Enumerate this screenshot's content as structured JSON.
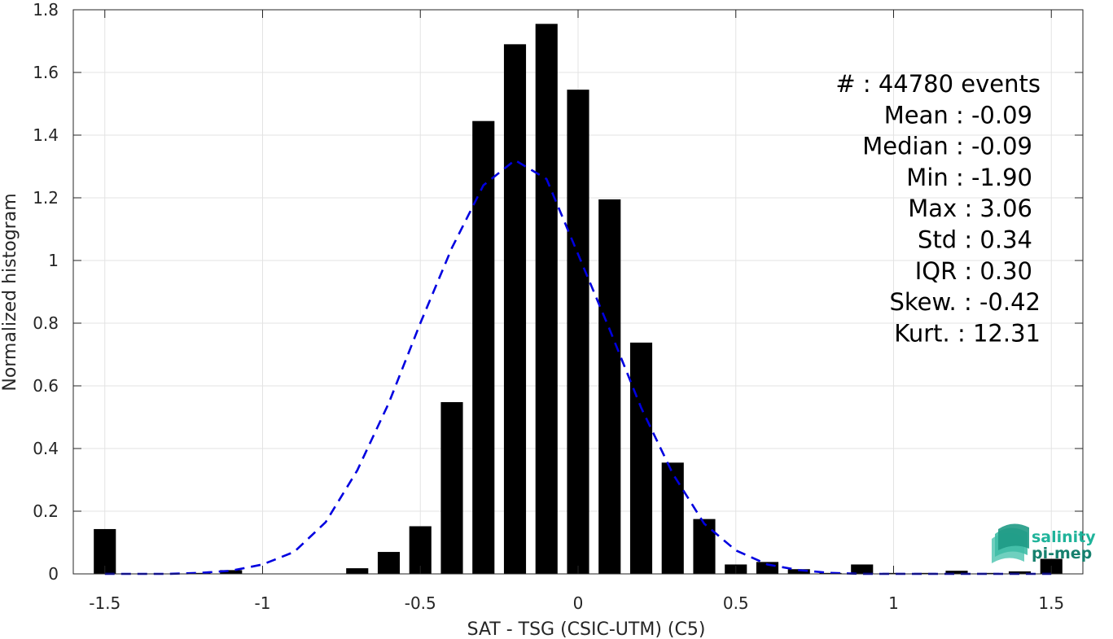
{
  "chart_data": {
    "type": "bar",
    "xlabel": "SAT - TSG (CSIC-UTM) (C5)",
    "ylabel": "Normalized histogram",
    "xlim": [
      -1.6,
      1.6
    ],
    "ylim": [
      0,
      1.8
    ],
    "grid": true,
    "xticks": [
      "-1.5",
      "-1",
      "-0.5",
      "0",
      "0.5",
      "1",
      "1.5"
    ],
    "xtick_values": [
      -1.5,
      -1,
      -0.5,
      0,
      0.5,
      1,
      1.5
    ],
    "yticks": [
      "0",
      "0.2",
      "0.4",
      "0.6",
      "0.8",
      "1",
      "1.2",
      "1.4",
      "1.6",
      "1.8"
    ],
    "ytick_values": [
      0,
      0.2,
      0.4,
      0.6,
      0.8,
      1.0,
      1.2,
      1.4,
      1.6,
      1.8
    ],
    "bar_color": "#000000",
    "bar_width": 0.07,
    "bins_x": [
      -1.5,
      -1.4,
      -1.3,
      -1.2,
      -1.1,
      -1.0,
      -0.9,
      -0.8,
      -0.7,
      -0.6,
      -0.5,
      -0.4,
      -0.3,
      -0.2,
      -0.1,
      0.0,
      0.1,
      0.2,
      0.3,
      0.4,
      0.5,
      0.6,
      0.7,
      0.8,
      0.9,
      1.0,
      1.1,
      1.2,
      1.3,
      1.4,
      1.5
    ],
    "values": [
      0.143,
      0.0,
      0.0,
      0.003,
      0.012,
      0.0,
      0.0,
      0.0,
      0.018,
      0.07,
      0.152,
      0.548,
      1.445,
      1.69,
      1.755,
      1.545,
      1.195,
      0.738,
      0.355,
      0.175,
      0.03,
      0.038,
      0.015,
      0.003,
      0.03,
      0.003,
      0.003,
      0.01,
      0.003,
      0.008,
      0.048
    ],
    "fit": {
      "name": "Gaussian fit",
      "color": "#0000e0",
      "style": "dashed",
      "x": [
        -1.5,
        -1.4,
        -1.3,
        -1.2,
        -1.1,
        -1.0,
        -0.9,
        -0.8,
        -0.7,
        -0.6,
        -0.5,
        -0.4,
        -0.3,
        -0.2,
        -0.1,
        0.0,
        0.1,
        0.2,
        0.3,
        0.4,
        0.5,
        0.6,
        0.7,
        0.8,
        0.9,
        1.0,
        1.1,
        1.2,
        1.3,
        1.4,
        1.5
      ],
      "y": [
        0.0,
        0.0,
        0.0,
        0.003,
        0.01,
        0.03,
        0.07,
        0.165,
        0.33,
        0.545,
        0.8,
        1.04,
        1.24,
        1.32,
        1.26,
        1.02,
        0.78,
        0.53,
        0.32,
        0.16,
        0.075,
        0.03,
        0.012,
        0.003,
        0.0,
        0.0,
        0.0,
        0.0,
        0.0,
        0.0,
        0.0
      ]
    },
    "annotation_lines": [
      "#  : 44780 events",
      "Mean : -0.09",
      "Median : -0.09",
      "Min : -1.90",
      "Max : 3.06",
      "Std : 0.34",
      "IQR : 0.30",
      "Skew. : -0.42",
      "Kurt. : 12.31"
    ]
  },
  "logo": {
    "line1": "salinity",
    "line2": "pi-mep",
    "color1": "#1fb39a",
    "color2": "#16806e"
  }
}
